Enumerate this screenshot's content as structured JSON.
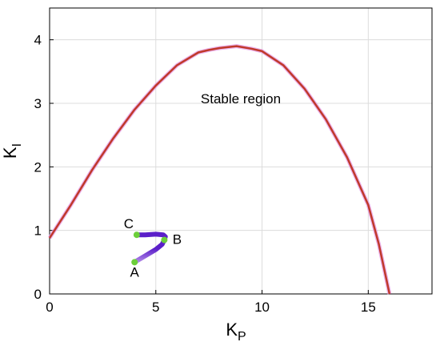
{
  "chart_data": {
    "type": "line",
    "title": "",
    "xlabel": "K",
    "xlabel_sub": "P",
    "ylabel": "K",
    "ylabel_sub": "I",
    "xlim": [
      0,
      18
    ],
    "ylim": [
      0,
      4.5
    ],
    "xticks": [
      0,
      5,
      10,
      15
    ],
    "yticks": [
      0,
      1,
      2,
      3,
      4
    ],
    "grid": true,
    "colors": {
      "boundary": "#c0392b",
      "boundary_shadow": "#e6a0e6",
      "trajectory_dark": "#5b1fc9",
      "trajectory_light": "#b48be8",
      "point": "#6ccf3a"
    },
    "boundary": {
      "x": [
        0,
        1,
        2,
        3,
        4,
        5,
        6,
        7,
        7.5,
        8,
        8.8,
        9.5,
        10,
        11,
        12,
        13,
        14,
        15,
        15.5,
        16
      ],
      "y": [
        0.88,
        1.4,
        1.95,
        2.45,
        2.9,
        3.28,
        3.6,
        3.8,
        3.84,
        3.87,
        3.9,
        3.86,
        3.82,
        3.6,
        3.23,
        2.75,
        2.15,
        1.4,
        0.78,
        0
      ]
    },
    "trajectory": {
      "x": [
        4.0,
        4.5,
        5.0,
        5.3,
        5.4,
        5.45,
        5.35,
        5.0,
        4.5,
        4.1
      ],
      "y": [
        0.5,
        0.6,
        0.7,
        0.78,
        0.85,
        0.9,
        0.93,
        0.94,
        0.93,
        0.93
      ]
    },
    "points": [
      {
        "label": "A",
        "x": 4.0,
        "y": 0.5
      },
      {
        "label": "B",
        "x": 5.4,
        "y": 0.85
      },
      {
        "label": "C",
        "x": 4.1,
        "y": 0.93
      }
    ],
    "annotations": [
      {
        "text": "Stable region",
        "x": 9.0,
        "y": 3.0
      }
    ]
  }
}
